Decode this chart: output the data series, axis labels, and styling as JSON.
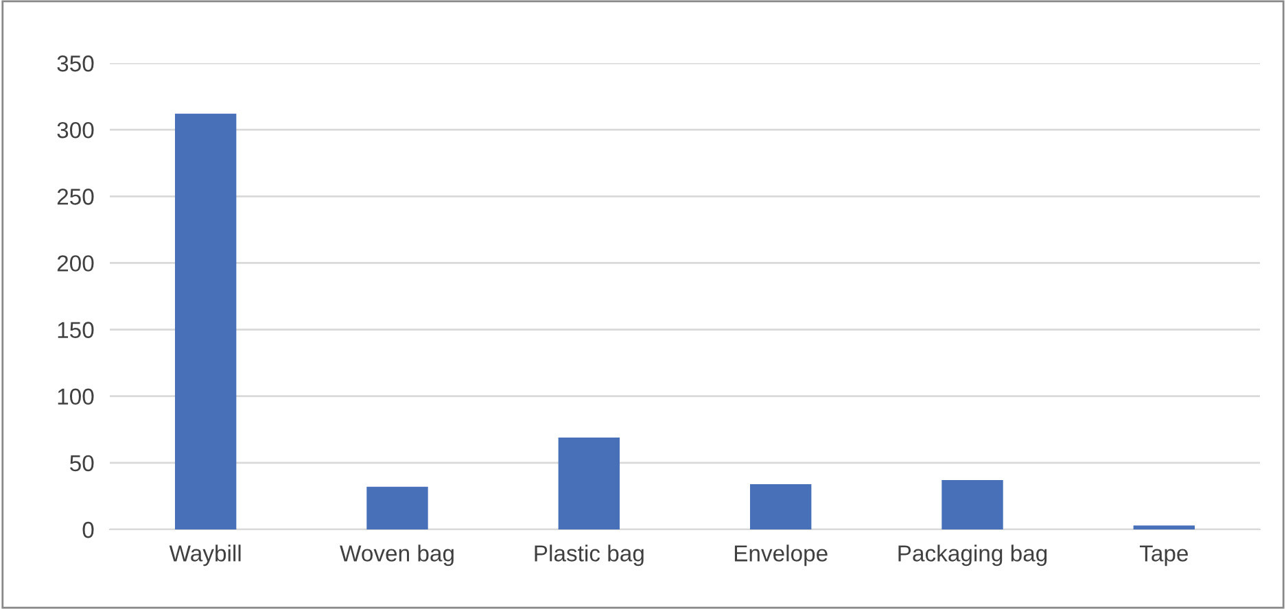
{
  "chart_data": {
    "type": "bar",
    "categories": [
      "Waybill",
      "Woven bag",
      "Plastic bag",
      "Envelope",
      "Packaging bag",
      "Tape"
    ],
    "values": [
      312,
      32,
      69,
      34,
      37,
      3
    ],
    "color": "#4870b8",
    "ylim": [
      0,
      350
    ],
    "yticks": [
      0,
      50,
      100,
      150,
      200,
      250,
      300,
      350
    ],
    "grid": "y"
  }
}
